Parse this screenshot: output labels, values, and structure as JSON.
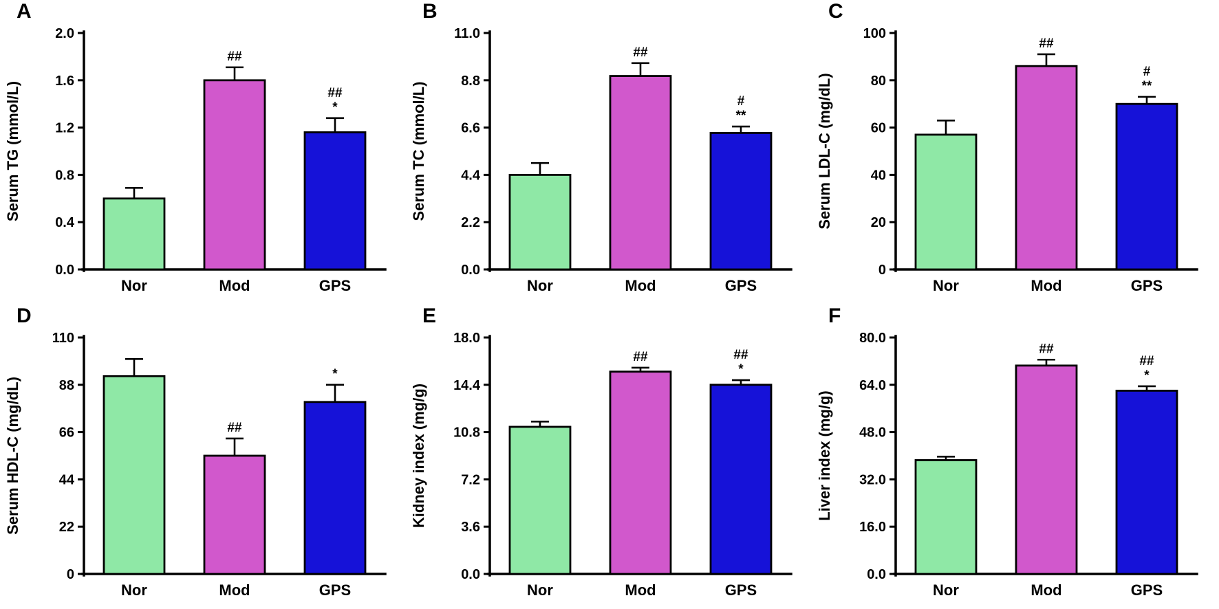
{
  "figure": {
    "background": "#ffffff",
    "bar_colors": [
      "#8FE8A6",
      "#D158CC",
      "#1612D8"
    ],
    "bar_border_color": "#000000",
    "error_bar_color": "#000000",
    "legend": "none",
    "grid": "off"
  },
  "chart_data": [
    {
      "type": "bar",
      "panel": "A",
      "title": "",
      "xlabel": "",
      "ylabel": "Serum TG (mmol/L)",
      "categories": [
        "Nor",
        "Mod",
        "GPS"
      ],
      "values": [
        0.6,
        1.6,
        1.16
      ],
      "errors": [
        0.09,
        0.11,
        0.12
      ],
      "annotations": [
        [],
        [
          "##"
        ],
        [
          "##",
          "*"
        ]
      ],
      "ylim": [
        0,
        2.0
      ],
      "yticks": [
        "0.0",
        "0.4",
        "0.8",
        "1.2",
        "1.6",
        "2.0"
      ]
    },
    {
      "type": "bar",
      "panel": "B",
      "title": "",
      "xlabel": "",
      "ylabel": "Serum TC (mmol/L)",
      "categories": [
        "Nor",
        "Mod",
        "GPS"
      ],
      "values": [
        4.4,
        9.0,
        6.35
      ],
      "errors": [
        0.55,
        0.6,
        0.3
      ],
      "annotations": [
        [],
        [
          "##"
        ],
        [
          "#",
          "**"
        ]
      ],
      "ylim": [
        0,
        11.0
      ],
      "yticks": [
        "0.0",
        "2.2",
        "4.4",
        "6.6",
        "8.8",
        "11.0"
      ]
    },
    {
      "type": "bar",
      "panel": "C",
      "title": "",
      "xlabel": "",
      "ylabel": "Serum LDL-C (mg/dL)",
      "categories": [
        "Nor",
        "Mod",
        "GPS"
      ],
      "values": [
        57,
        86,
        70
      ],
      "errors": [
        6,
        5,
        3
      ],
      "annotations": [
        [],
        [
          "##"
        ],
        [
          "#",
          "**"
        ]
      ],
      "ylim": [
        0,
        100
      ],
      "yticks": [
        "0",
        "20",
        "40",
        "60",
        "80",
        "100"
      ]
    },
    {
      "type": "bar",
      "panel": "D",
      "title": "",
      "xlabel": "",
      "ylabel": "Serum HDL-C (mg/dL)",
      "categories": [
        "Nor",
        "Mod",
        "GPS"
      ],
      "values": [
        92,
        55,
        80
      ],
      "errors": [
        8,
        8,
        8
      ],
      "annotations": [
        [],
        [
          "##"
        ],
        [
          "*"
        ]
      ],
      "ylim": [
        0,
        110
      ],
      "yticks": [
        "0",
        "22",
        "44",
        "66",
        "88",
        "110"
      ]
    },
    {
      "type": "bar",
      "panel": "E",
      "title": "",
      "xlabel": "",
      "ylabel": "Kidney index (mg/g)",
      "categories": [
        "Nor",
        "Mod",
        "GPS"
      ],
      "values": [
        11.2,
        15.4,
        14.4
      ],
      "errors": [
        0.4,
        0.3,
        0.35
      ],
      "annotations": [
        [],
        [
          "##"
        ],
        [
          "##",
          "*"
        ]
      ],
      "ylim": [
        0,
        18.0
      ],
      "yticks": [
        "0.0",
        "3.6",
        "7.2",
        "10.8",
        "14.4",
        "18.0"
      ]
    },
    {
      "type": "bar",
      "panel": "F",
      "title": "",
      "xlabel": "",
      "ylabel": "Liver index (mg/g)",
      "categories": [
        "Nor",
        "Mod",
        "GPS"
      ],
      "values": [
        38.5,
        70.5,
        62
      ],
      "errors": [
        1.2,
        2,
        1.5
      ],
      "annotations": [
        [],
        [
          "##"
        ],
        [
          "##",
          "*"
        ]
      ],
      "ylim": [
        0,
        80.0
      ],
      "yticks": [
        "0.0",
        "16.0",
        "32.0",
        "48.0",
        "64.0",
        "80.0"
      ]
    }
  ]
}
